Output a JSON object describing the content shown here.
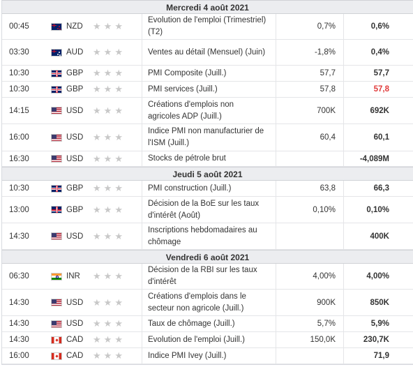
{
  "days": [
    {
      "title": "Mercredi 4 août 2021",
      "events": [
        {
          "time": "00:45",
          "flag": "nz",
          "currency": "NZD",
          "event": "Evolution de l'emploi (Trimestriel) (T2)",
          "actual": "0,7%",
          "forecast": "0,6%",
          "forecast_color": "normal",
          "h": 37
        },
        {
          "time": "03:30",
          "flag": "au",
          "currency": "AUD",
          "event": "Ventes au détail (Mensuel) (Juin)",
          "actual": "-1,8%",
          "forecast": "0,4%",
          "forecast_color": "normal",
          "h": 37
        },
        {
          "time": "10:30",
          "flag": "gb",
          "currency": "GBP",
          "event": "PMI Composite (Juill.)",
          "actual": "57,7",
          "forecast": "57,7",
          "forecast_color": "normal",
          "h": 23
        },
        {
          "time": "10:30",
          "flag": "gb",
          "currency": "GBP",
          "event": "PMI services (Juill.)",
          "actual": "57,8",
          "forecast": "57,8",
          "forecast_color": "red",
          "h": 23
        },
        {
          "time": "14:15",
          "flag": "us",
          "currency": "USD",
          "event": "Créations d'emplois non agricoles ADP (Juill.)",
          "actual": "700K",
          "forecast": "692K",
          "forecast_color": "normal",
          "h": 38
        },
        {
          "time": "16:00",
          "flag": "us",
          "currency": "USD",
          "event": "Indice PMI non manufacturier de l'ISM (Juill.)",
          "actual": "60,4",
          "forecast": "60,1",
          "forecast_color": "normal",
          "h": 39
        },
        {
          "time": "16:30",
          "flag": "us",
          "currency": "USD",
          "event": "Stocks de pétrole brut",
          "actual": "",
          "forecast": "-4,089M",
          "forecast_color": "normal",
          "h": 22
        }
      ]
    },
    {
      "title": "Jeudi 5 août 2021",
      "events": [
        {
          "time": "10:30",
          "flag": "gb",
          "currency": "GBP",
          "event": "PMI construction (Juill.)",
          "actual": "63,8",
          "forecast": "66,3",
          "forecast_color": "normal",
          "h": 23
        },
        {
          "time": "13:00",
          "flag": "gb",
          "currency": "GBP",
          "event": "Décision de la BoE sur les taux d'intérêt (Août)",
          "actual": "0,10%",
          "forecast": "0,10%",
          "forecast_color": "normal",
          "h": 38
        },
        {
          "time": "14:30",
          "flag": "us",
          "currency": "USD",
          "event": "Inscriptions hebdomadaires au chômage",
          "actual": "",
          "forecast": "400K",
          "forecast_color": "normal",
          "h": 38
        }
      ]
    },
    {
      "title": "Vendredi 6 août 2021",
      "events": [
        {
          "time": "06:30",
          "flag": "in",
          "currency": "INR",
          "event": "Décision de la RBI sur les taux d'intérêt",
          "actual": "4,00%",
          "forecast": "4,00%",
          "forecast_color": "normal",
          "h": 37
        },
        {
          "time": "14:30",
          "flag": "us",
          "currency": "USD",
          "event": "Créations d'emplois dans le secteur non agricole (Juill.)",
          "actual": "900K",
          "forecast": "850K",
          "forecast_color": "normal",
          "h": 38
        },
        {
          "time": "14:30",
          "flag": "us",
          "currency": "USD",
          "event": "Taux de chômage (Juill.)",
          "actual": "5,7%",
          "forecast": "5,9%",
          "forecast_color": "normal",
          "h": 23
        },
        {
          "time": "14:30",
          "flag": "ca",
          "currency": "CAD",
          "event": "Evolution de l'emploi (Juill.)",
          "actual": "150,0K",
          "forecast": "230,7K",
          "forecast_color": "normal",
          "h": 23
        },
        {
          "time": "16:00",
          "flag": "ca",
          "currency": "CAD",
          "event": "Indice PMI Ivey (Juill.)",
          "actual": "",
          "forecast": "71,9",
          "forecast_color": "normal",
          "h": 23
        }
      ]
    }
  ],
  "importance_stars": 3,
  "star_glyph": "★",
  "star_color": "#c8c8c8",
  "accent_red": "#e03a3a"
}
